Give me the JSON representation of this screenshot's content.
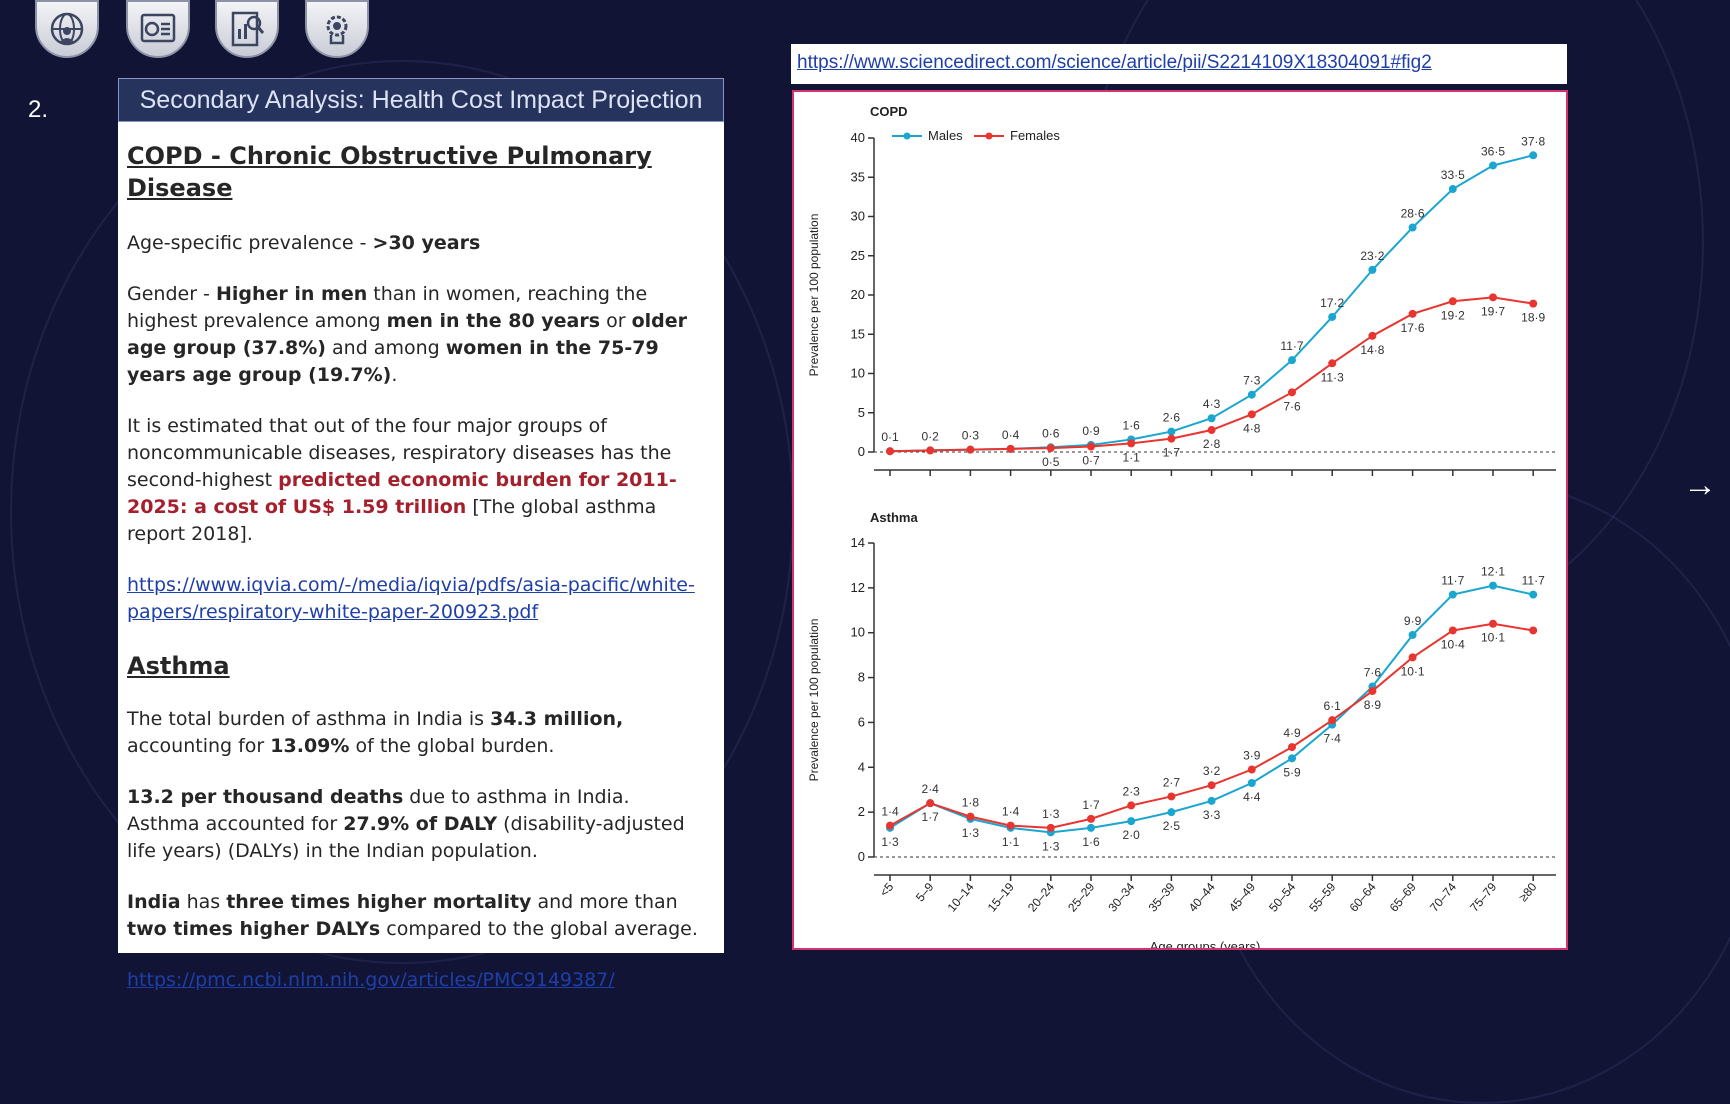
{
  "nav": {
    "icons": [
      "globe-user-icon",
      "dashboard-report-icon",
      "analysis-document-icon",
      "settings-gear-icon"
    ]
  },
  "slide": {
    "number": "2."
  },
  "panel": {
    "header": "Secondary Analysis: Health Cost Impact Projection",
    "copd_heading": "COPD - Chronic Obstructive Pulmonary Disease",
    "copd_age_label": "Age-specific prevalence - ",
    "copd_age_value": ">30 years",
    "copd_gender": {
      "t1": "Gender - ",
      "b1": "Higher in men",
      "t2": " than in women, reaching the highest prevalence among ",
      "b2": "men in the 80 years",
      "t3": " or ",
      "b3": "older age group (37.8%)",
      "t4": " and among ",
      "b4": "women in the 75-79 years age group (19.7%)",
      "t5": "."
    },
    "copd_burden": {
      "t1": "It is estimated that out of the four major groups of noncommunicable diseases, respiratory diseases has the second-highest ",
      "red": "predicted economic burden for 2011-2025: a cost of US$ 1.59 trillion",
      "t2": " [The global asthma report 2018]."
    },
    "copd_link": "https://www.iqvia.com/-/media/iqvia/pdfs/asia-pacific/white-papers/respiratory-white-paper-200923.pdf",
    "asthma_heading": "Asthma",
    "asthma_burden": {
      "t1": "The total burden of asthma in India is ",
      "b1": "34.3 million,",
      "t2": " accounting for ",
      "b2": "13.09%",
      "t3": " of the global burden."
    },
    "asthma_deaths": {
      "b1": "13.2 per thousand deaths",
      "t1": " due to asthma in India.",
      "t2": "Asthma accounted for ",
      "b2": "27.9% of DALY",
      "t3": " (disability-adjusted life years) (DALYs) in the Indian population."
    },
    "asthma_mortality": {
      "b1": "India",
      "t1": " has ",
      "b2": "three times higher mortality",
      "t2": " and more than ",
      "b3": "two times higher DALYs",
      "t3": " compared to the global average."
    },
    "asthma_link": "https://pmc.ncbi.nlm.nih.gov/articles/PMC9149387/"
  },
  "source_url": "https://www.sciencedirect.com/science/article/pii/S2214109X18304091#fig2",
  "next_arrow": "→",
  "colors": {
    "males": "#1aa6cf",
    "females": "#e8352f",
    "panel_header_bg": "#26345d",
    "background": "#121436",
    "red_text": "#a5202d",
    "link": "#1f3fa8"
  },
  "chart_data": [
    {
      "type": "line",
      "title": "COPD",
      "ylabel": "Prevalence per 100 population",
      "xlabel": "",
      "ylim": [
        0,
        40
      ],
      "yticks": [
        0,
        5,
        10,
        15,
        20,
        25,
        30,
        35,
        40
      ],
      "legend": "top-left",
      "categories": [
        "<5",
        "5–9",
        "10–14",
        "15–19",
        "20–24",
        "25–29",
        "30–34",
        "35–39",
        "40–44",
        "45–49",
        "50–54",
        "55–59",
        "60–64",
        "65–69",
        "70–74",
        "75–79",
        "≥80"
      ],
      "series": [
        {
          "name": "Males",
          "values": [
            0.1,
            0.2,
            0.3,
            0.4,
            0.6,
            0.9,
            1.6,
            2.6,
            4.3,
            7.3,
            11.7,
            17.2,
            23.2,
            28.6,
            33.5,
            36.5,
            37.8
          ]
        },
        {
          "name": "Females",
          "values": [
            0.1,
            0.2,
            0.3,
            0.4,
            0.5,
            0.7,
            1.1,
            1.7,
            2.8,
            4.8,
            7.6,
            11.3,
            14.8,
            17.6,
            19.2,
            19.7,
            18.9
          ]
        }
      ],
      "labels": [
        "0·1",
        "0·2",
        "0·3",
        "0·4",
        "0·6",
        "0·9",
        "1·6",
        "2·6",
        "4·3",
        "7·3",
        "11·7",
        "17·2",
        "23·2",
        "28·6",
        "33·5",
        "36·5",
        "37·8",
        "0·5",
        "0·7",
        "1·1",
        "1·7",
        "2·8",
        "4·8",
        "7·6",
        "11·3",
        "14·8",
        "17·6",
        "19·2",
        "19·7",
        "18·9"
      ]
    },
    {
      "type": "line",
      "title": "Asthma",
      "ylabel": "Prevalence per 100 population",
      "xlabel": "Age groups (years)",
      "ylim": [
        0,
        14
      ],
      "yticks": [
        0,
        2,
        4,
        6,
        8,
        10,
        12,
        14
      ],
      "categories": [
        "<5",
        "5–9",
        "10–14",
        "15–19",
        "20–24",
        "25–29",
        "30–34",
        "35–39",
        "40–44",
        "45–49",
        "50–54",
        "55–59",
        "60–64",
        "65–69",
        "70–74",
        "75–79",
        "≥80"
      ],
      "series": [
        {
          "name": "Males",
          "values": [
            1.3,
            2.4,
            1.7,
            1.3,
            1.1,
            1.3,
            1.6,
            2.0,
            2.5,
            3.3,
            4.4,
            5.9,
            7.6,
            9.9,
            11.7,
            12.1,
            11.7
          ]
        },
        {
          "name": "Females",
          "values": [
            1.4,
            2.4,
            1.8,
            1.4,
            1.3,
            1.7,
            2.3,
            2.7,
            3.2,
            3.9,
            4.9,
            6.1,
            7.4,
            8.9,
            10.1,
            10.4,
            10.1
          ]
        }
      ],
      "labels": [
        "1·4",
        "2·4",
        "1·8",
        "1·4",
        "1·3",
        "1·7",
        "2·3",
        "2·7",
        "3·2",
        "3·9",
        "4·9",
        "6·1",
        "7·6",
        "9·9",
        "11·7",
        "12·1",
        "11·7",
        "1·3",
        "1·7",
        "1·3",
        "1·1",
        "1·3",
        "1·6",
        "2·0",
        "2·5",
        "3·3",
        "4·4",
        "5·9",
        "7·4",
        "8·9",
        "10·1",
        "10·4",
        "10·1"
      ]
    }
  ]
}
